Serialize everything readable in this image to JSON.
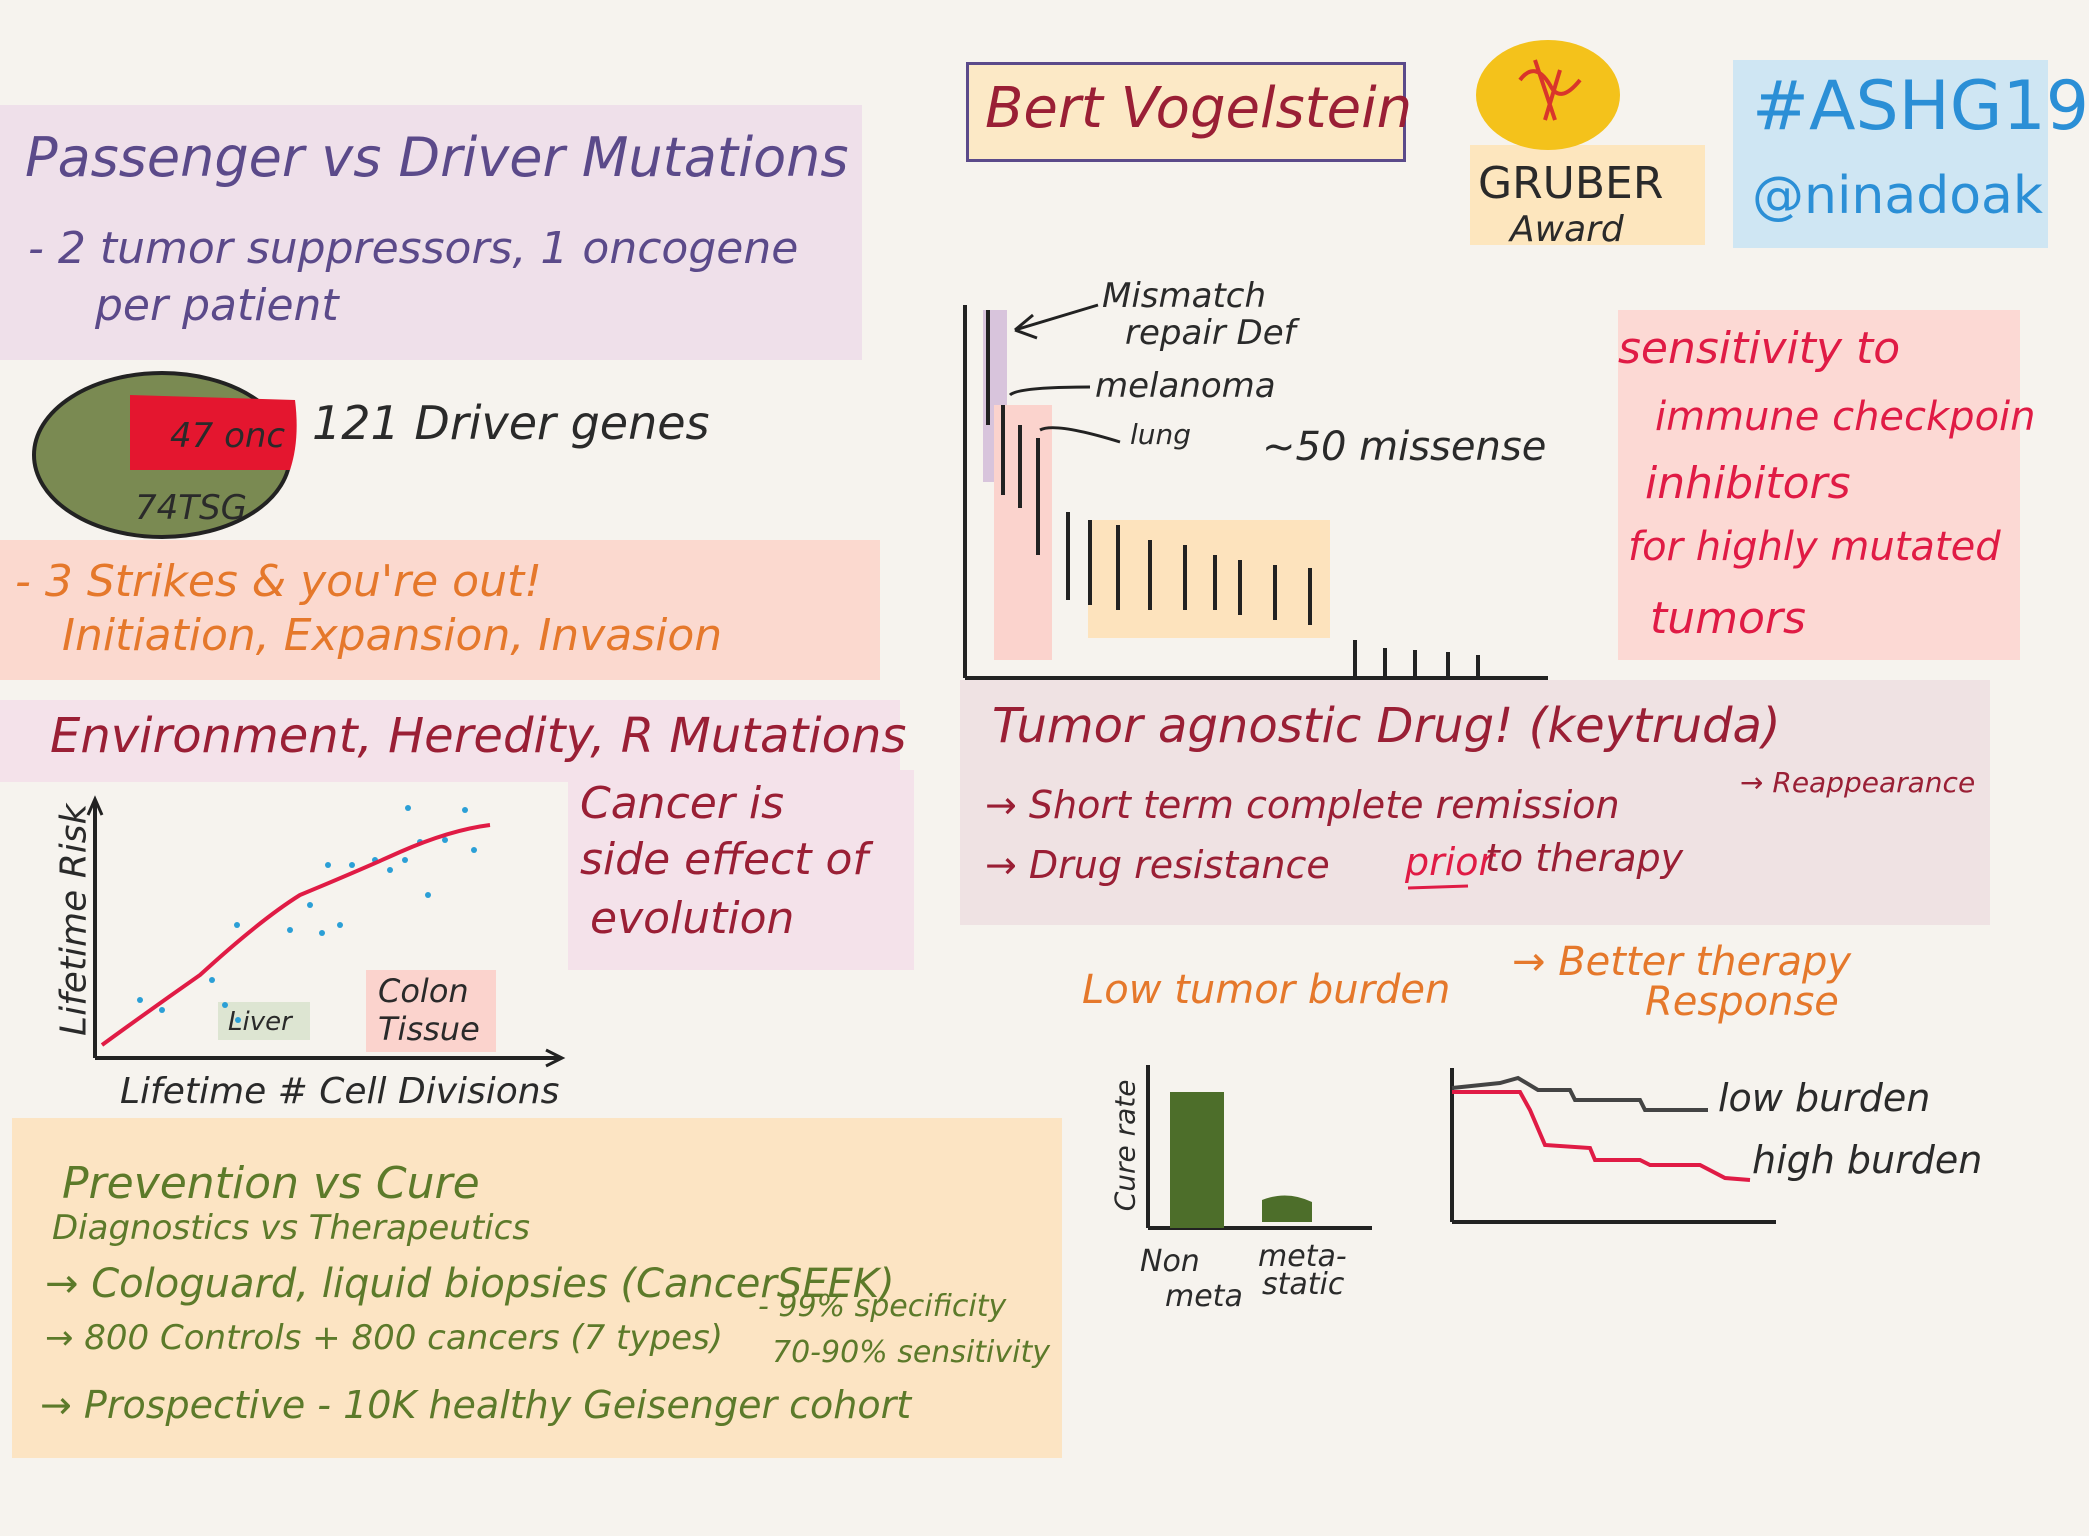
{
  "header": {
    "speaker": "Bert Vogelstein",
    "award_line1": "GRUBER",
    "award_line2": "Award",
    "hashtag": "#ASHG19",
    "handle": "@ninadoak"
  },
  "passenger": {
    "title": "Passenger vs Driver Mutations",
    "line1": "- 2 tumor suppressors, 1 oncogene",
    "line2": "per patient"
  },
  "drivers": {
    "pie_onc": "47 onc",
    "pie_tsg": "74TSG",
    "label": "121 Driver genes"
  },
  "strikes": {
    "line1": "- 3 Strikes & you're out!",
    "line2": "Initiation, Expansion, Invasion"
  },
  "environment": {
    "title": "Environment, Heredity, R Mutations",
    "ylabel": "Lifetime Risk",
    "xlabel": "Lifetime # Cell Divisions",
    "liver": "Liver",
    "colon1": "Colon",
    "colon2": "Tissue",
    "note1": "Cancer is",
    "note2": "side effect of",
    "note3": "evolution"
  },
  "mutation_chart": {
    "lbl_mismatch1": "Mismatch",
    "lbl_mismatch2": "repair Def",
    "lbl_melanoma": "melanoma",
    "lbl_lung": "lung",
    "missense": "~50 missense"
  },
  "sensitivity": {
    "line1": "sensitivity to",
    "line2": "immune checkpoin",
    "line3": "inhibitors",
    "line4": "for highly mutated",
    "line5": "tumors"
  },
  "agnostic": {
    "title": "Tumor agnostic Drug! (keytruda)",
    "line1a": "→ Short term complete remission",
    "line1b": "→ Reappearance",
    "line2a": "→ Drug resistance",
    "line2b": "prior",
    "line2c": "to therapy"
  },
  "burden": {
    "headline_a": "Low tumor burden",
    "headline_b": "→ Better therapy",
    "headline_c": "Response",
    "bar_ylabel": "Cure rate",
    "bar_x1a": "Non",
    "bar_x1b": "meta",
    "bar_x2a": "meta-",
    "bar_x2b": "static",
    "low": "low burden",
    "high": "high burden"
  },
  "prevention": {
    "title": "Prevention vs Cure",
    "sub": "Diagnostics vs Therapeutics",
    "line1": "→ Cologuard, liquid biopsies (CancerSEEK)",
    "line2": "→ 800 Controls + 800 cancers (7 types)",
    "line2b": "- 99% specificity",
    "line2c": "70-90% sensitivity",
    "line3": "→ Prospective - 10K healthy Geisenger cohort"
  },
  "colors": {
    "purple_ink": "#5b4a8a",
    "orange_ink": "#e5782b",
    "red_ink": "#e01b45",
    "olive": "#5c7a2a",
    "blue_ink": "#2b8fd6"
  }
}
